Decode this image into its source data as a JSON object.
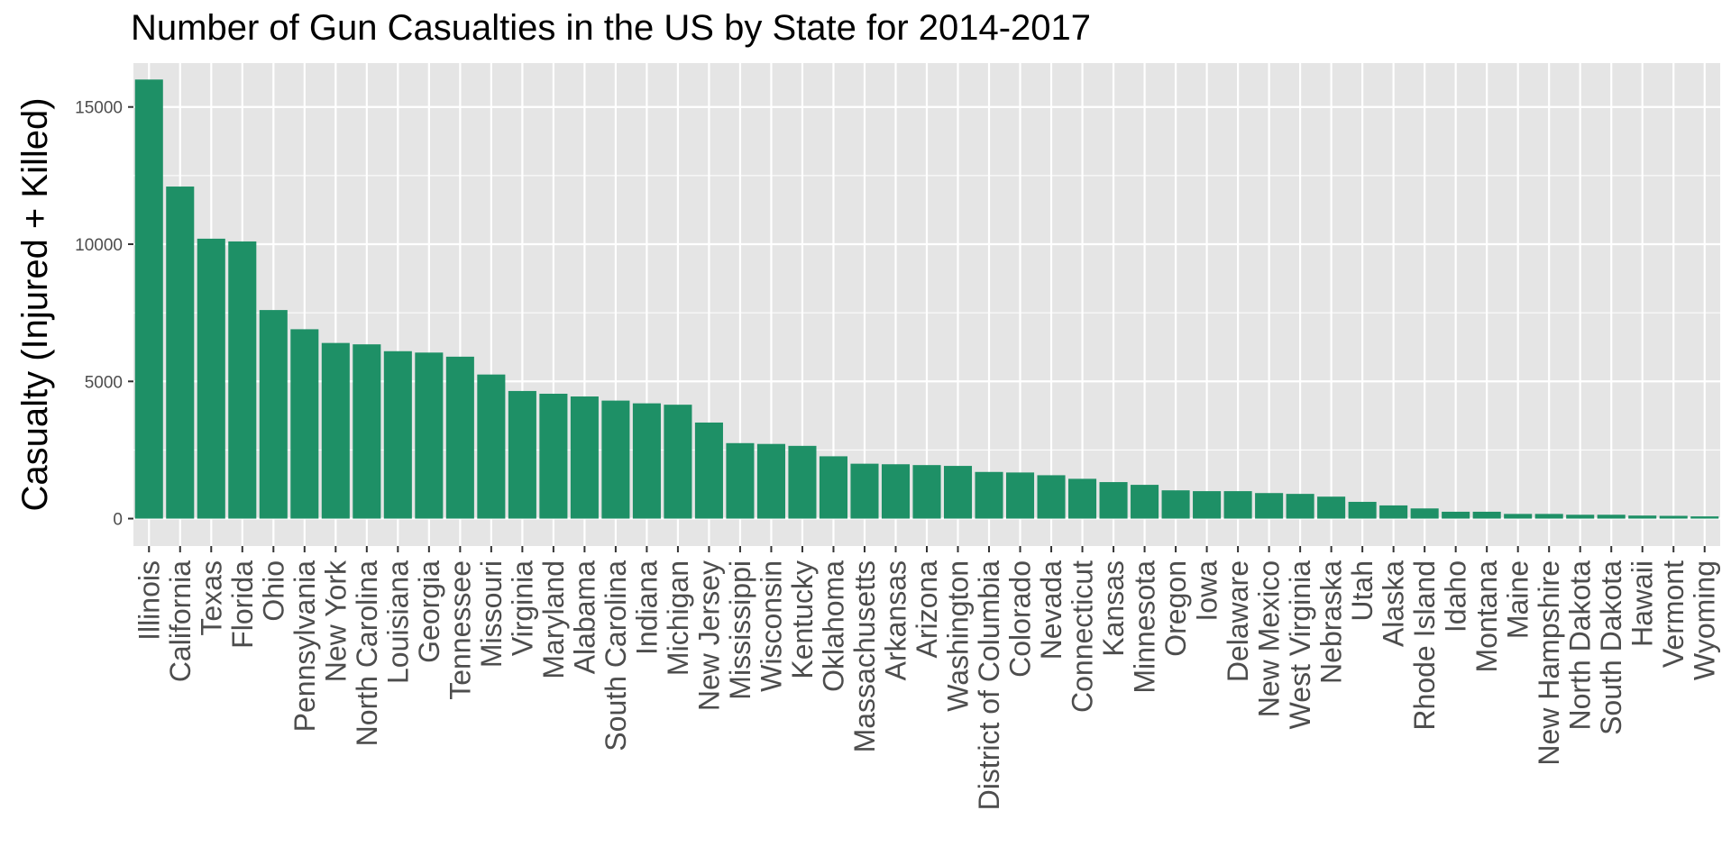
{
  "chart_data": {
    "type": "bar",
    "title": "Number of Gun Casualties in the US by State for 2014-2017",
    "xlabel": "",
    "ylabel": "Casualty (Injured + Killed)",
    "ylim": [
      -1000,
      16600
    ],
    "yticks": [
      0,
      5000,
      10000,
      15000
    ],
    "grid": true,
    "bar_color": "#1e9066",
    "panel_color": "#e5e5e5",
    "grid_color": "#ffffff",
    "categories": [
      "Illinois",
      "California",
      "Texas",
      "Florida",
      "Ohio",
      "Pennsylvania",
      "New York",
      "North Carolina",
      "Louisiana",
      "Georgia",
      "Tennessee",
      "Missouri",
      "Virginia",
      "Maryland",
      "Alabama",
      "South Carolina",
      "Indiana",
      "Michigan",
      "New Jersey",
      "Mississippi",
      "Wisconsin",
      "Kentucky",
      "Oklahoma",
      "Massachusetts",
      "Arkansas",
      "Arizona",
      "Washington",
      "District of Columbia",
      "Colorado",
      "Nevada",
      "Connecticut",
      "Kansas",
      "Minnesota",
      "Oregon",
      "Iowa",
      "Delaware",
      "New Mexico",
      "West Virginia",
      "Nebraska",
      "Utah",
      "Alaska",
      "Rhode Island",
      "Idaho",
      "Montana",
      "Maine",
      "New Hampshire",
      "North Dakota",
      "South Dakota",
      "Hawaii",
      "Vermont",
      "Wyoming"
    ],
    "values": [
      16000,
      12100,
      10200,
      10100,
      7600,
      6900,
      6400,
      6350,
      6100,
      6050,
      5900,
      5250,
      4650,
      4550,
      4450,
      4300,
      4200,
      4150,
      3500,
      2750,
      2720,
      2650,
      2270,
      2000,
      1980,
      1950,
      1920,
      1700,
      1680,
      1580,
      1450,
      1330,
      1230,
      1030,
      1000,
      1000,
      930,
      900,
      800,
      610,
      480,
      370,
      250,
      250,
      170,
      170,
      140,
      140,
      110,
      100,
      80
    ]
  }
}
